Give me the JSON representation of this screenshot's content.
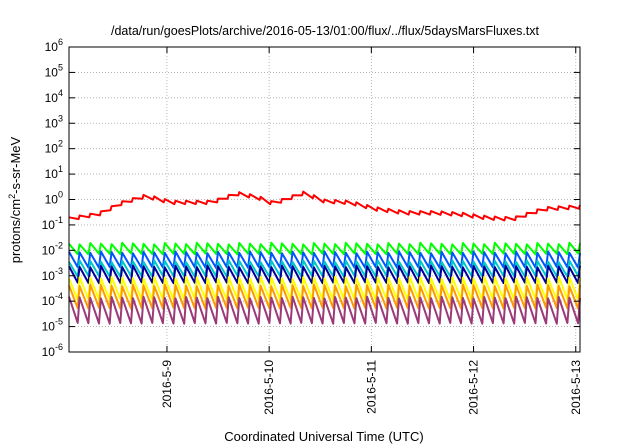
{
  "chart_data": {
    "type": "line",
    "title": "/data/run/goesPlots/archive/2016-05-13/01:00/flux/../flux/5daysMarsFluxes.txt",
    "xlabel": "Coordinated Universal Time (UTC)",
    "ylabel": "protons/cm²-s-sr-MeV",
    "ylabel_base": "protons/cm",
    "ylabel_sup": "2",
    "ylabel_rest": "-s-sr-MeV",
    "yscale": "log",
    "ylim": [
      1e-06,
      1000000.0
    ],
    "ytick_exponents": [
      -6,
      -5,
      -4,
      -3,
      -2,
      -1,
      0,
      1,
      2,
      3,
      4,
      5,
      6
    ],
    "ytick_base": "10",
    "xlim": [
      "2016-05-08 01:00",
      "2016-05-13 01:00"
    ],
    "xticks": [
      {
        "label": "2016-5-9",
        "t": 0.1917
      },
      {
        "label": "2016-5-10",
        "t": 0.3917
      },
      {
        "label": "2016-5-11",
        "t": 0.5917
      },
      {
        "label": "2016-5-12",
        "t": 0.7917
      },
      {
        "label": "2016-5-13",
        "t": 0.9917
      }
    ],
    "grid": true,
    "cycles": 48,
    "series": [
      {
        "color": "#ff0000",
        "kind": "bumpy",
        "anchors": [
          [
            0,
            0.2
          ],
          [
            0.06,
            0.32
          ],
          [
            0.1,
            0.8
          ],
          [
            0.15,
            1.6
          ],
          [
            0.2,
            0.9
          ],
          [
            0.28,
            0.9
          ],
          [
            0.33,
            2.0
          ],
          [
            0.37,
            1.4
          ],
          [
            0.4,
            0.8
          ],
          [
            0.46,
            2.1
          ],
          [
            0.5,
            1.0
          ],
          [
            0.55,
            0.9
          ],
          [
            0.6,
            0.5
          ],
          [
            0.66,
            0.35
          ],
          [
            0.72,
            0.35
          ],
          [
            0.77,
            0.3
          ],
          [
            0.82,
            0.22
          ],
          [
            0.87,
            0.2
          ],
          [
            0.93,
            0.5
          ],
          [
            1.0,
            0.6
          ]
        ],
        "sawtooth_depth": 0.45
      },
      {
        "color": "#00ff00",
        "kind": "periodic",
        "peak": 0.02,
        "trough": 0.0075
      },
      {
        "color": "#0055ff",
        "kind": "periodic",
        "peak": 0.009,
        "trough": 0.0022
      },
      {
        "color": "#00c8c8",
        "kind": "periodic",
        "peak": 0.004,
        "trough": 0.001
      },
      {
        "color": "#000099",
        "kind": "periodic",
        "peak": 0.0025,
        "trough": 0.00055
      },
      {
        "color": "#ffff00",
        "kind": "periodic",
        "peak": 0.0009,
        "trough": 0.00012
      },
      {
        "color": "#ff9900",
        "kind": "periodic",
        "peak": 0.00045,
        "trough": 5.5e-05
      },
      {
        "color": "#9b3a7a",
        "kind": "periodic",
        "peak": 0.00015,
        "trough": 1.4e-05
      }
    ]
  }
}
